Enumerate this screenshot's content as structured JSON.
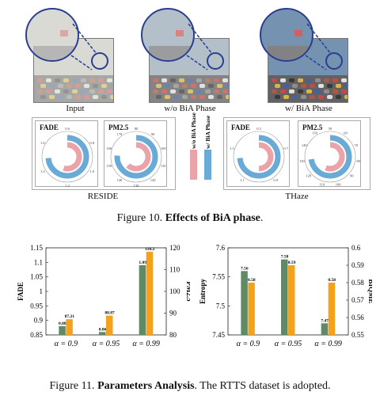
{
  "fig10": {
    "panels": [
      {
        "label": "Input",
        "sky": "#c9ccc6",
        "haze": 0.55
      },
      {
        "label": "w/o BiA Phase",
        "sky": "#9fb1bf",
        "haze": 0.3
      },
      {
        "label": "w/ BiA Phase",
        "sky": "#6f8fae",
        "haze": 0.05
      }
    ],
    "legend": {
      "pink_label": "w/o BiA Phase",
      "blue_label": "w/ BiA Phase",
      "pink": "#eaa3a8",
      "blue": "#6aaad6"
    },
    "groups": [
      {
        "name": "RESIDE",
        "charts": [
          {
            "title": "FADE",
            "ticks": [
              "0.6",
              "0.8",
              "1.0",
              "1.2",
              "1.4",
              "1.6"
            ],
            "wo": 0.55,
            "w": 0.74
          },
          {
            "title": "PM2.5",
            "ticks": [
              "80",
              "90",
              "100",
              "110",
              "120",
              "130",
              "140",
              "150",
              "160",
              "170"
            ],
            "wo": 0.62,
            "w": 0.76
          }
        ]
      },
      {
        "name": "THaze",
        "charts": [
          {
            "title": "FADE",
            "ticks": [
              "0.5",
              "0.7",
              "0.9",
              "1.1",
              "1.3"
            ],
            "wo": 0.5,
            "w": 0.74
          },
          {
            "title": "PM2.5",
            "ticks": [
              "50",
              "60",
              "70",
              "80",
              "90",
              "100",
              "110",
              "120",
              "130",
              "140",
              "150"
            ],
            "wo": 0.56,
            "w": 0.73
          }
        ]
      }
    ],
    "caption_prefix": "Figure 10.",
    "caption_bold": "Effects of BiA phase",
    "caption_suffix": "."
  },
  "chart_data": [
    {
      "type": "bar",
      "categories": [
        "α = 0.9",
        "α = 0.95",
        "α = 0.99"
      ],
      "series": [
        {
          "name": "FADE",
          "axis": "left",
          "color": "#5f8a65",
          "values": [
            0.88,
            0.86,
            1.09
          ],
          "labels": [
            "0.88",
            "0.86",
            "1.09"
          ]
        },
        {
          "name": "PM2.5",
          "axis": "right",
          "color": "#f4a11d",
          "values": [
            87.21,
            88.87,
            118.2
          ],
          "labels": [
            "87.21",
            "88.87",
            "118.2"
          ]
        }
      ],
      "ylabel": "FADE",
      "ylim": [
        0.85,
        1.15
      ],
      "yticks": [
        "0.85",
        "0.9",
        "0.95",
        "1",
        "1.05",
        "1.1",
        "1.15"
      ],
      "y2label": "PM2.5",
      "y2lim": [
        80,
        120
      ],
      "y2ticks": [
        "80",
        "90",
        "100",
        "110",
        "120"
      ]
    },
    {
      "type": "bar",
      "categories": [
        "α = 0.9",
        "α = 0.95",
        "α = 0.99"
      ],
      "series": [
        {
          "name": "Entropy",
          "axis": "left",
          "color": "#5f8a65",
          "values": [
            7.56,
            7.58,
            7.47
          ],
          "labels": [
            "7.56",
            "7.58",
            "7.47"
          ]
        },
        {
          "name": "BIQME",
          "axis": "right",
          "color": "#f4a11d",
          "values": [
            0.58,
            0.59,
            0.58
          ],
          "labels": [
            "0.58",
            "0.59",
            "0.58"
          ]
        }
      ],
      "ylabel": "Entropy",
      "ylim": [
        7.45,
        7.6
      ],
      "yticks": [
        "7.45",
        "7.5",
        "7.55",
        "7.6"
      ],
      "y2label": "BIQME",
      "y2lim": [
        0.55,
        0.6
      ],
      "y2ticks": [
        "0.55",
        "0.56",
        "0.57",
        "0.58",
        "0.59",
        "0.6"
      ]
    }
  ],
  "fig11": {
    "caption_prefix": "Figure 11.",
    "caption_bold": "Parameters Analysis",
    "caption_suffix": ". The RTTS dataset is adopted."
  }
}
